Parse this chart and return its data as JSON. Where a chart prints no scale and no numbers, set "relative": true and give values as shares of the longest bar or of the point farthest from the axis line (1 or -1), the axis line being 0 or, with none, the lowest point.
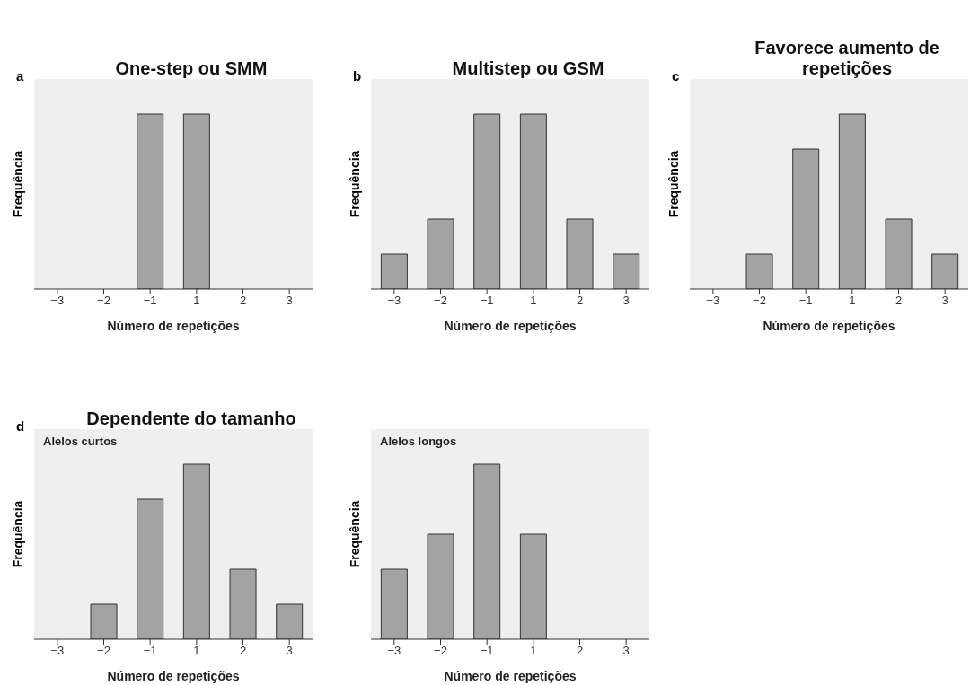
{
  "chart_data": [
    {
      "type": "bar",
      "title": "One-step ou SMM",
      "annotations": [
        "a"
      ],
      "xlabel": "Número de repetições",
      "ylabel": "Frequência",
      "categories": [
        "−3",
        "−2",
        "−1",
        "1",
        "2",
        "3"
      ],
      "values": [
        0,
        0,
        1,
        1,
        0,
        0
      ],
      "color": "#a3a3a3",
      "relative": true
    },
    {
      "type": "bar",
      "title": "Multistep ou GSM",
      "annotations": [
        "b"
      ],
      "xlabel": "Número de repetições",
      "ylabel": "Frequência",
      "categories": [
        "−3",
        "−2",
        "−1",
        "1",
        "2",
        "3"
      ],
      "values": [
        0.2,
        0.4,
        1,
        1,
        0.4,
        0.2
      ],
      "color": "#a3a3a3",
      "relative": true
    },
    {
      "type": "bar",
      "title": "Favorece aumento de repetições",
      "annotations": [
        "c"
      ],
      "xlabel": "Número de repetições",
      "ylabel": "Frequência",
      "categories": [
        "−3",
        "−2",
        "−1",
        "1",
        "2",
        "3"
      ],
      "values": [
        0,
        0.2,
        0.8,
        1,
        0.4,
        0.2
      ],
      "color": "#a3a3a3",
      "relative": true
    },
    {
      "type": "bar",
      "title": "Dependente do tamanho",
      "subtitle": "Alelos curtos",
      "annotations": [
        "d"
      ],
      "xlabel": "Número de repetições",
      "ylabel": "Frequência",
      "categories": [
        "−3",
        "−2",
        "−1",
        "1",
        "2",
        "3"
      ],
      "values": [
        0,
        0.2,
        0.8,
        1,
        0.4,
        0.2
      ],
      "color": "#a3a3a3",
      "relative": true
    },
    {
      "type": "bar",
      "subtitle": "Alelos longos",
      "xlabel": "Número de repetições",
      "ylabel": "Frequência",
      "categories": [
        "−3",
        "−2",
        "−1",
        "1",
        "2",
        "3"
      ],
      "values": [
        0.4,
        0.6,
        1,
        0.6,
        0,
        0
      ],
      "color": "#a3a3a3",
      "relative": true
    }
  ]
}
